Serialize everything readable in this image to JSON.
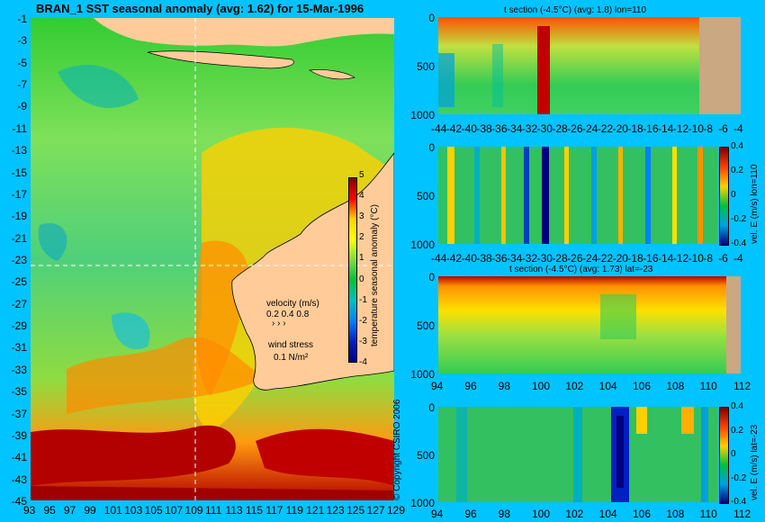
{
  "main_title": "BRAN_1  SST seasonal anomaly (avg: 1.62) for 15-Mar-1996",
  "map": {
    "lat_ticks": [
      "-1",
      "-3",
      "-5",
      "-7",
      "-9",
      "-11",
      "-13",
      "-15",
      "-17",
      "-19",
      "-21",
      "-23",
      "-25",
      "-27",
      "-29",
      "-31",
      "-33",
      "-35",
      "-37",
      "-39",
      "-41",
      "-43",
      "-45"
    ],
    "lon_ticks": [
      "93",
      "95",
      "97",
      "99",
      "101",
      "103",
      "105",
      "107",
      "109",
      "111",
      "113",
      "115",
      "117",
      "119",
      "121",
      "123",
      "125",
      "127",
      "129"
    ],
    "colorbar_ticks": [
      "5",
      "4",
      "3",
      "2",
      "1",
      "0",
      "-1",
      "-2",
      "-3",
      "-4"
    ],
    "colorbar_label": "temperature seasonal anomaly (°C)",
    "velocity_label": "velocity (m/s)",
    "velocity_scale": "0.2 0.4 0.8",
    "wind_label": "wind stress",
    "wind_scale": "0.1 N/m²",
    "copyright": "© Copyright CSIRO 2006",
    "colors": {
      "ocean_warm": "#ff9a00",
      "land": "#ffcc99",
      "hot": "#b30000",
      "cool": "#00d060"
    }
  },
  "panels": [
    {
      "title": "t section (-4.5°C) (avg: 1.8) lon=110",
      "y_ticks": [
        "0",
        "500",
        "1000"
      ],
      "x_ticks": [
        "-44",
        "-42",
        "-40",
        "-38",
        "-36",
        "-34",
        "-32",
        "-30",
        "-28",
        "-26",
        "-24",
        "-22",
        "-20",
        "-18",
        "-16",
        "-14",
        "-12",
        "-10",
        "-8",
        "-6",
        "-4"
      ],
      "side_label": ""
    },
    {
      "title": "",
      "y_ticks": [
        "0",
        "500",
        "1000"
      ],
      "x_ticks": [
        "-44",
        "-42",
        "-40",
        "-38",
        "-36",
        "-34",
        "-32",
        "-30",
        "-28",
        "-26",
        "-24",
        "-22",
        "-20",
        "-18",
        "-16",
        "-14",
        "-12",
        "-10",
        "-8",
        "-6",
        "-4"
      ],
      "side_label": "vel. E (m/s) lon=110",
      "cb_ticks": [
        "0.4",
        "0.2",
        "0",
        "-0.2",
        "-0.4"
      ]
    },
    {
      "title": "t section (-4.5°C) (avg: 1.73) lat=-23",
      "y_ticks": [
        "0",
        "500",
        "1000"
      ],
      "x_ticks": [
        "94",
        "96",
        "98",
        "100",
        "102",
        "104",
        "106",
        "108",
        "110",
        "112"
      ],
      "side_label": ""
    },
    {
      "title": "",
      "y_ticks": [
        "0",
        "500",
        "1000"
      ],
      "x_ticks": [
        "94",
        "96",
        "98",
        "100",
        "102",
        "104",
        "106",
        "108",
        "110",
        "112"
      ],
      "side_label": "vel. E (m/s) lat=-23",
      "cb_ticks": [
        "0.4",
        "0.2",
        "0",
        "-0.2",
        "-0.4"
      ]
    }
  ]
}
